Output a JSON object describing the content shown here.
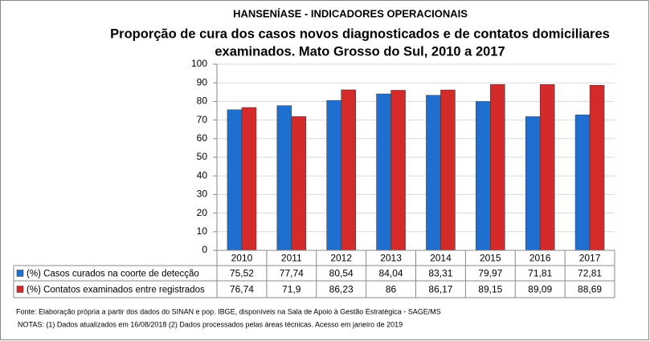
{
  "chart_data": {
    "type": "bar",
    "title": "HANSENÍASE - INDICADORES OPERACIONAIS",
    "subtitle": [
      "Proporção de cura dos casos novos diagnosticados e de contatos domiciliares",
      "examinados.  Mato Grosso do Sul, 2010 a 2017"
    ],
    "categories": [
      "2010",
      "2011",
      "2012",
      "2013",
      "2014",
      "2015",
      "2016",
      "2017"
    ],
    "series": [
      {
        "name": "(%) Casos curados na coorte de detecção",
        "color": "#1f6fd0",
        "values": [
          75.52,
          77.74,
          80.54,
          84.04,
          83.31,
          79.97,
          71.81,
          72.81
        ],
        "value_labels": [
          "75,52",
          "77,74",
          "80,54",
          "84,04",
          "83,31",
          "79,97",
          "71,81",
          "72,81"
        ]
      },
      {
        "name": "(%) Contatos examinados entre registrados",
        "color": "#d42a2a",
        "values": [
          76.74,
          71.9,
          86.23,
          86,
          86.17,
          89.15,
          89.09,
          88.69
        ],
        "value_labels": [
          "76,74",
          "71,9",
          "86,23",
          "86",
          "86,17",
          "89,15",
          "89,09",
          "88,69"
        ]
      }
    ],
    "ylim": [
      0,
      100
    ],
    "yticks": [
      0,
      10,
      20,
      30,
      40,
      50,
      60,
      70,
      80,
      90,
      100
    ],
    "grid": true,
    "notes": [
      "Fonte:  Elaboração própria a partir dos dados do  SINAN  e  pop. IBGE, disponíveis na Sala de Apoio à Gestão Estratégica -  SAGE/MS",
      "NOTAS: (1) Dados atualizados em 16/08/2018 (2) Dados processados pelas áreas técnicas. Acesso em janeiro de 2019"
    ]
  }
}
